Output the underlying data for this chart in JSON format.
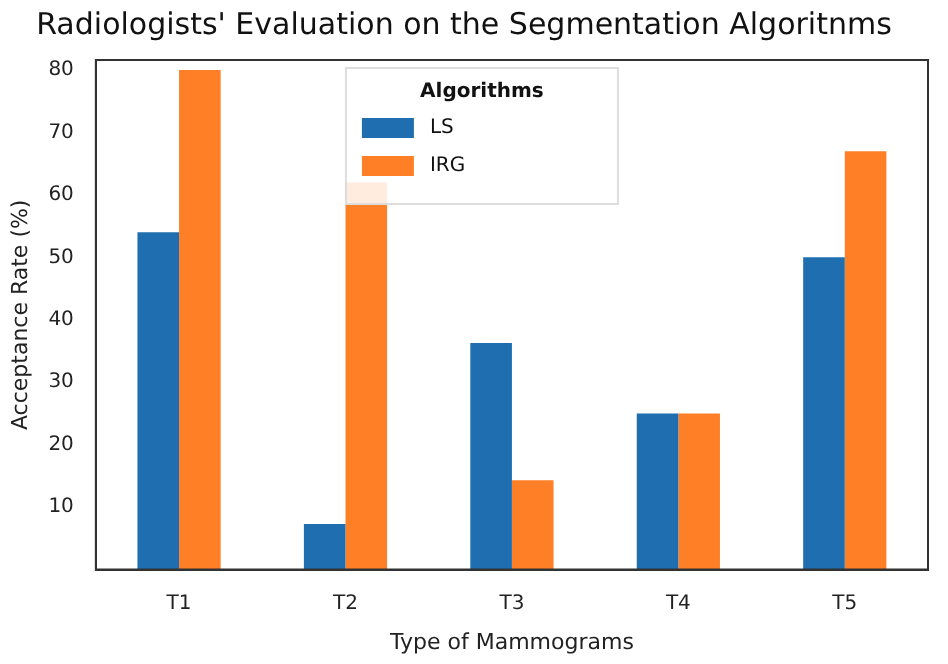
{
  "chart_data": {
    "type": "bar",
    "title": "Radiologists' Evaluation on the Segmentation Algoritnms",
    "xlabel": "Type of Mammograms",
    "ylabel": "Acceptance Rate (%)",
    "categories": [
      "T1",
      "T2",
      "T3",
      "T4",
      "T5"
    ],
    "series": [
      {
        "name": "LS",
        "color": "#1f6fb0",
        "values": [
          54,
          7.3,
          36.3,
          25,
          50
        ]
      },
      {
        "name": "IRG",
        "color": "#ff7f27",
        "values": [
          80,
          62,
          14.3,
          25,
          67
        ]
      }
    ],
    "ylim": [
      0,
      81.6
    ],
    "yticks": [
      10,
      20,
      30,
      40,
      50,
      60,
      70,
      80
    ],
    "grid": false,
    "legend": "top",
    "legend_title": "Algorithms"
  }
}
